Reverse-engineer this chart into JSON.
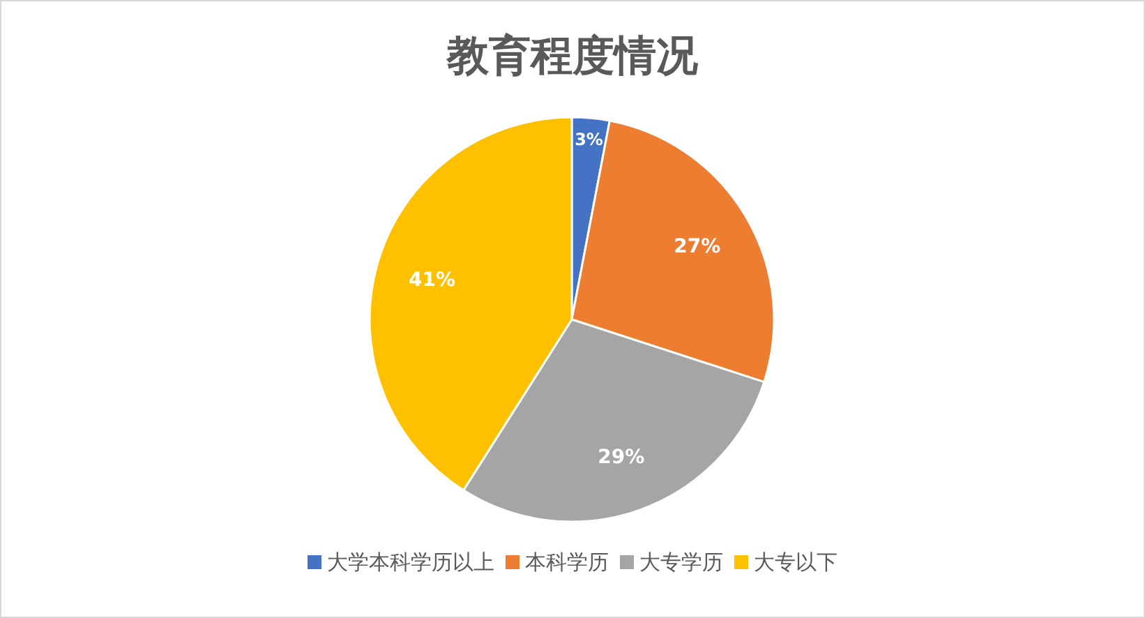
{
  "chart_data": {
    "type": "pie",
    "title": "教育程度情况",
    "categories": [
      "大学本科学历以上",
      "本科学历",
      "大专学历",
      "大专以下"
    ],
    "values": [
      3,
      27,
      29,
      41
    ],
    "colors": [
      "#4472c4",
      "#ed7d31",
      "#a5a5a5",
      "#ffc000"
    ],
    "value_labels": [
      "3%",
      "27%",
      "29%",
      "41%"
    ],
    "legend": "bottom"
  }
}
